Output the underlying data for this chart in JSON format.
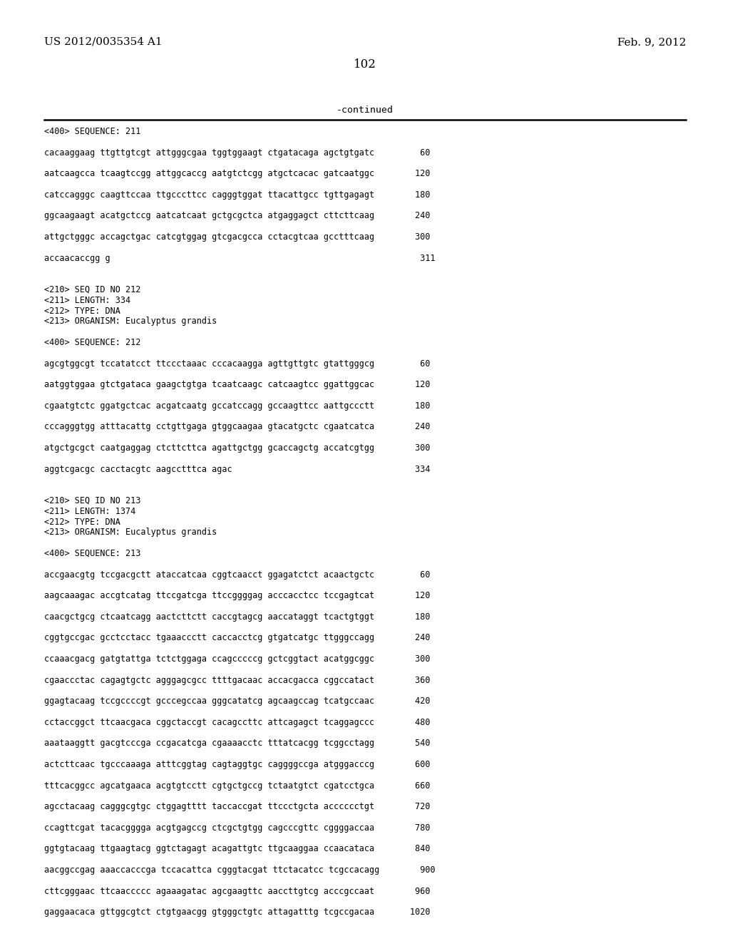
{
  "background_color": "#ffffff",
  "top_left_text": "US 2012/0035354 A1",
  "top_right_text": "Feb. 9, 2012",
  "page_number": "102",
  "continued_text": "-continued",
  "body_lines": [
    {
      "text": "<400> SEQUENCE: 211",
      "type": "header"
    },
    {
      "text": "",
      "type": "blank"
    },
    {
      "text": "cacaaggaag ttgttgtcgt attgggcgaa tggtggaagt ctgatacaga agctgtgatc         60",
      "type": "seq"
    },
    {
      "text": "",
      "type": "blank"
    },
    {
      "text": "aatcaagcca tcaagtccgg attggcaccg aatgtctcgg atgctcacac gatcaatggc        120",
      "type": "seq"
    },
    {
      "text": "",
      "type": "blank"
    },
    {
      "text": "catccagggc caagttccaa ttgcccttcc cagggtggat ttacattgcc tgttgagagt        180",
      "type": "seq"
    },
    {
      "text": "",
      "type": "blank"
    },
    {
      "text": "ggcaagaagt acatgctccg aatcatcaat gctgcgctca atgaggagct cttcttcaag        240",
      "type": "seq"
    },
    {
      "text": "",
      "type": "blank"
    },
    {
      "text": "attgctgggc accagctgac catcgtggag gtcgacgcca cctacgtcaa gcctttcaag        300",
      "type": "seq"
    },
    {
      "text": "",
      "type": "blank"
    },
    {
      "text": "accaacaccgg g                                                             311",
      "type": "seq"
    },
    {
      "text": "",
      "type": "blank"
    },
    {
      "text": "",
      "type": "blank"
    },
    {
      "text": "<210> SEQ ID NO 212",
      "type": "header"
    },
    {
      "text": "<211> LENGTH: 334",
      "type": "header"
    },
    {
      "text": "<212> TYPE: DNA",
      "type": "header"
    },
    {
      "text": "<213> ORGANISM: Eucalyptus grandis",
      "type": "header"
    },
    {
      "text": "",
      "type": "blank"
    },
    {
      "text": "<400> SEQUENCE: 212",
      "type": "header"
    },
    {
      "text": "",
      "type": "blank"
    },
    {
      "text": "agcgtggcgt tccatatcct ttccctaaac cccacaagga agttgttgtc gtattgggcg         60",
      "type": "seq"
    },
    {
      "text": "",
      "type": "blank"
    },
    {
      "text": "aatggtggaa gtctgataca gaagctgtga tcaatcaagc catcaagtcc ggattggcac        120",
      "type": "seq"
    },
    {
      "text": "",
      "type": "blank"
    },
    {
      "text": "cgaatgtctc ggatgctcac acgatcaatg gccatccagg gccaagttcc aattgccctt        180",
      "type": "seq"
    },
    {
      "text": "",
      "type": "blank"
    },
    {
      "text": "cccagggtgg atttacattg cctgttgaga gtggcaagaa gtacatgctc cgaatcatca        240",
      "type": "seq"
    },
    {
      "text": "",
      "type": "blank"
    },
    {
      "text": "atgctgcgct caatgaggag ctcttcttca agattgctgg gcaccagctg accatcgtgg        300",
      "type": "seq"
    },
    {
      "text": "",
      "type": "blank"
    },
    {
      "text": "aggtcgacgc cacctacgtc aagcctttca agac                                    334",
      "type": "seq"
    },
    {
      "text": "",
      "type": "blank"
    },
    {
      "text": "",
      "type": "blank"
    },
    {
      "text": "<210> SEQ ID NO 213",
      "type": "header"
    },
    {
      "text": "<211> LENGTH: 1374",
      "type": "header"
    },
    {
      "text": "<212> TYPE: DNA",
      "type": "header"
    },
    {
      "text": "<213> ORGANISM: Eucalyptus grandis",
      "type": "header"
    },
    {
      "text": "",
      "type": "blank"
    },
    {
      "text": "<400> SEQUENCE: 213",
      "type": "header"
    },
    {
      "text": "",
      "type": "blank"
    },
    {
      "text": "accgaacgtg tccgacgctt ataccatcaa cggtcaacct ggagatctct acaactgctc         60",
      "type": "seq"
    },
    {
      "text": "",
      "type": "blank"
    },
    {
      "text": "aagcaaagac accgtcatag ttccgatcga ttccggggag acccacctcc tccgagtcat        120",
      "type": "seq"
    },
    {
      "text": "",
      "type": "blank"
    },
    {
      "text": "caacgctgcg ctcaatcagg aactcttctt caccgtagcg aaccataggt tcactgtggt        180",
      "type": "seq"
    },
    {
      "text": "",
      "type": "blank"
    },
    {
      "text": "cggtgccgac gcctcctacc tgaaaccctt caccacctcg gtgatcatgc ttgggccagg        240",
      "type": "seq"
    },
    {
      "text": "",
      "type": "blank"
    },
    {
      "text": "ccaaacgacg gatgtattga tctctggaga ccagcccccg gctcggtact acatggcggc        300",
      "type": "seq"
    },
    {
      "text": "",
      "type": "blank"
    },
    {
      "text": "cgaaccctac cagagtgctc agggagcgcc ttttgacaac accacgacca cggccatact        360",
      "type": "seq"
    },
    {
      "text": "",
      "type": "blank"
    },
    {
      "text": "ggagtacaag tccgccccgt gcccegccaa gggcatatcg agcaagccag tcatgccaac        420",
      "type": "seq"
    },
    {
      "text": "",
      "type": "blank"
    },
    {
      "text": "cctaccggct ttcaacgaca cggctaccgt cacagccttc attcagagct tcaggagccc        480",
      "type": "seq"
    },
    {
      "text": "",
      "type": "blank"
    },
    {
      "text": "aaataaggtt gacgtcccga ccgacatcga cgaaaacctc tttatcacgg tcggcctagg        540",
      "type": "seq"
    },
    {
      "text": "",
      "type": "blank"
    },
    {
      "text": "actcttcaac tgcccaaaga atttcggtag cagtaggtgc caggggccga atgggacccg        600",
      "type": "seq"
    },
    {
      "text": "",
      "type": "blank"
    },
    {
      "text": "tttcacggcc agcatgaaca acgtgtcctt cgtgctgccg tctaatgtct cgatcctgca        660",
      "type": "seq"
    },
    {
      "text": "",
      "type": "blank"
    },
    {
      "text": "agcctacaag cagggcgtgc ctggagtttt taccaccgat ttccctgcta acccccctgt        720",
      "type": "seq"
    },
    {
      "text": "",
      "type": "blank"
    },
    {
      "text": "ccagttcgat tacacgggga acgtgagccg ctcgctgtgg cagcccgttc cggggaccaa        780",
      "type": "seq"
    },
    {
      "text": "",
      "type": "blank"
    },
    {
      "text": "ggtgtacaag ttgaagtacg ggtctagagt acagattgtc ttgcaaggaa ccaacataca        840",
      "type": "seq"
    },
    {
      "text": "",
      "type": "blank"
    },
    {
      "text": "aacggccgag aaaccacccga tccacattca cgggtacgat ttctacatcc tcgccacagg        900",
      "type": "seq"
    },
    {
      "text": "",
      "type": "blank"
    },
    {
      "text": "cttcgggaac ttcaaccccc agaaagatac agcgaagttc aaccttgtcg acccgccaat        960",
      "type": "seq"
    },
    {
      "text": "",
      "type": "blank"
    },
    {
      "text": "gaggaacaca gttggcgtct ctgtgaacgg gtgggctgtc attagatttg tcgccgacaa       1020",
      "type": "seq"
    }
  ]
}
